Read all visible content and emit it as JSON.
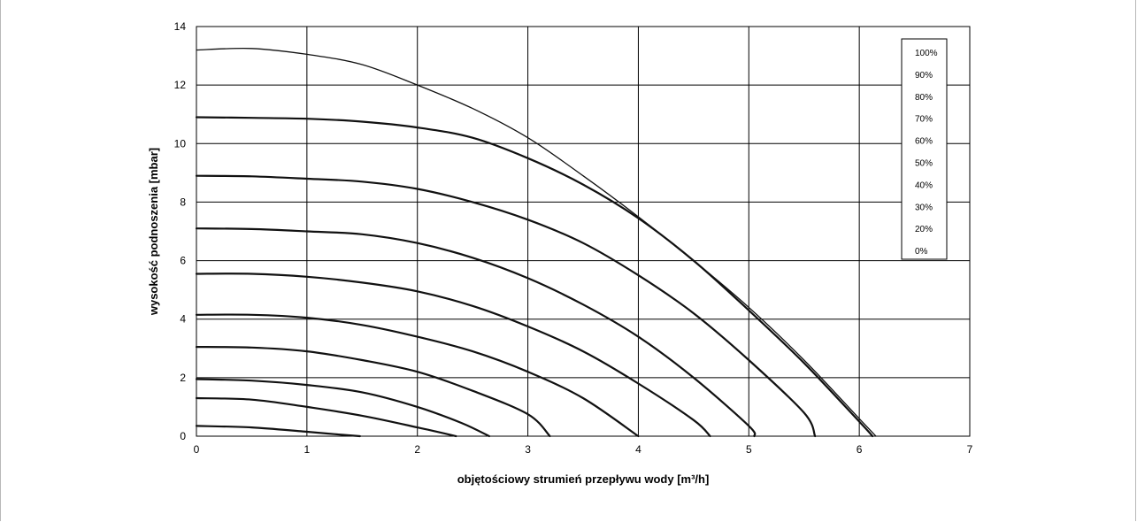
{
  "chart_data": {
    "type": "line",
    "title": "",
    "xlabel": "objętościowy strumień przepływu wody [m³/h]",
    "ylabel": "wysokość podnoszenia [mbar]",
    "xlim": [
      0,
      7
    ],
    "ylim": [
      0,
      14
    ],
    "xticks": [
      "0",
      "1",
      "2",
      "3",
      "4",
      "5",
      "6",
      "7"
    ],
    "yticks": [
      "0",
      "2",
      "4",
      "6",
      "8",
      "10",
      "12",
      "14"
    ],
    "grid": true,
    "legend_position": "top-right",
    "legend": [
      "100%",
      "90%",
      "80%",
      "70%",
      "60%",
      "50%",
      "40%",
      "30%",
      "20%",
      "0%"
    ],
    "series": [
      {
        "name": "100%",
        "x": [
          0,
          0.5,
          1,
          1.5,
          2,
          2.5,
          3,
          3.5,
          4,
          4.5,
          5,
          5.5,
          6,
          6.15
        ],
        "y": [
          13.2,
          13.25,
          13.05,
          12.7,
          12.0,
          11.2,
          10.2,
          8.9,
          7.5,
          6.0,
          4.4,
          2.6,
          0.6,
          0
        ]
      },
      {
        "name": "90%",
        "x": [
          0,
          0.5,
          1,
          1.5,
          2,
          2.5,
          3,
          3.5,
          4,
          4.5,
          5,
          5.5,
          6,
          6.12
        ],
        "y": [
          10.9,
          10.88,
          10.85,
          10.75,
          10.55,
          10.2,
          9.5,
          8.6,
          7.45,
          6.0,
          4.3,
          2.5,
          0.5,
          0
        ]
      },
      {
        "name": "80%",
        "x": [
          0,
          0.5,
          1,
          1.5,
          2,
          2.5,
          3,
          3.5,
          4,
          4.5,
          5,
          5.5,
          5.6
        ],
        "y": [
          8.9,
          8.88,
          8.8,
          8.7,
          8.45,
          8.0,
          7.4,
          6.6,
          5.5,
          4.2,
          2.6,
          0.8,
          0
        ]
      },
      {
        "name": "70%",
        "x": [
          0,
          0.5,
          1,
          1.5,
          2,
          2.5,
          3,
          3.5,
          4,
          4.5,
          5,
          5.05
        ],
        "y": [
          7.1,
          7.08,
          7.0,
          6.9,
          6.6,
          6.1,
          5.4,
          4.5,
          3.4,
          2.0,
          0.35,
          0
        ]
      },
      {
        "name": "60%",
        "x": [
          0,
          0.5,
          1,
          1.5,
          2,
          2.5,
          3,
          3.5,
          4,
          4.5,
          4.65
        ],
        "y": [
          5.55,
          5.55,
          5.45,
          5.25,
          4.95,
          4.45,
          3.75,
          2.9,
          1.8,
          0.55,
          0
        ]
      },
      {
        "name": "50%",
        "x": [
          0,
          0.5,
          1,
          1.5,
          2,
          2.5,
          3,
          3.5,
          4.0
        ],
        "y": [
          4.15,
          4.15,
          4.05,
          3.8,
          3.4,
          2.9,
          2.2,
          1.3,
          0
        ]
      },
      {
        "name": "40%",
        "x": [
          0,
          0.5,
          1,
          1.5,
          2,
          2.5,
          3,
          3.2
        ],
        "y": [
          3.05,
          3.03,
          2.9,
          2.6,
          2.2,
          1.55,
          0.75,
          0
        ]
      },
      {
        "name": "30%",
        "x": [
          0,
          0.5,
          1,
          1.5,
          2,
          2.4,
          2.65
        ],
        "y": [
          1.95,
          1.9,
          1.75,
          1.5,
          1.0,
          0.45,
          0
        ]
      },
      {
        "name": "20%",
        "x": [
          0,
          0.5,
          1,
          1.5,
          2,
          2.35
        ],
        "y": [
          1.3,
          1.25,
          1.0,
          0.7,
          0.3,
          0
        ]
      },
      {
        "name": "0%",
        "x": [
          0,
          0.5,
          1,
          1.25,
          1.48
        ],
        "y": [
          0.35,
          0.3,
          0.15,
          0.07,
          0
        ]
      }
    ]
  }
}
